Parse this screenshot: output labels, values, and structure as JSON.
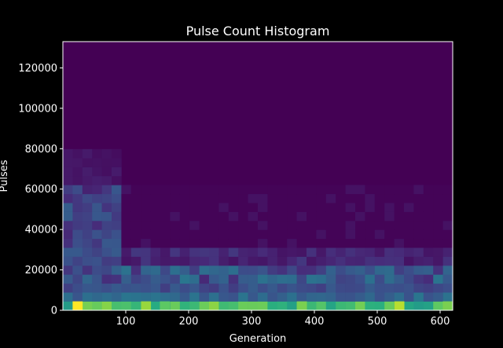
{
  "chart_data": {
    "type": "heatmap",
    "title": "Pulse Count Histogram",
    "xlabel": "Generation",
    "ylabel": "Pulses",
    "xlim": [
      0,
      620
    ],
    "ylim": [
      0,
      133000
    ],
    "x_ticks": [
      100,
      200,
      300,
      400,
      500,
      600
    ],
    "x_tick_labels": [
      "100",
      "200",
      "300",
      "400",
      "500",
      "600"
    ],
    "y_ticks": [
      0,
      20000,
      40000,
      60000,
      80000,
      100000,
      120000
    ],
    "y_tick_labels": [
      "0",
      "20000",
      "40000",
      "60000",
      "80000",
      "100000",
      "120000"
    ],
    "x_bin_width": 15.5,
    "y_bin_height": 4433.33,
    "n_x_bins": 40,
    "n_y_bins": 30,
    "colormap": "viridis",
    "grid": false,
    "background_color": "#440154",
    "bright_cells": [
      {
        "x": 23.25,
        "y": 2216.67,
        "intensity": 1.0
      },
      {
        "x": 132,
        "y": 2216.67,
        "intensity": 0.85
      },
      {
        "x": 162,
        "y": 2216.67,
        "intensity": 0.75
      },
      {
        "x": 380,
        "y": 2216.67,
        "intensity": 0.8
      },
      {
        "x": 535,
        "y": 2216.67,
        "intensity": 0.9
      },
      {
        "x": 612,
        "y": 2216.67,
        "intensity": 0.8
      }
    ]
  }
}
